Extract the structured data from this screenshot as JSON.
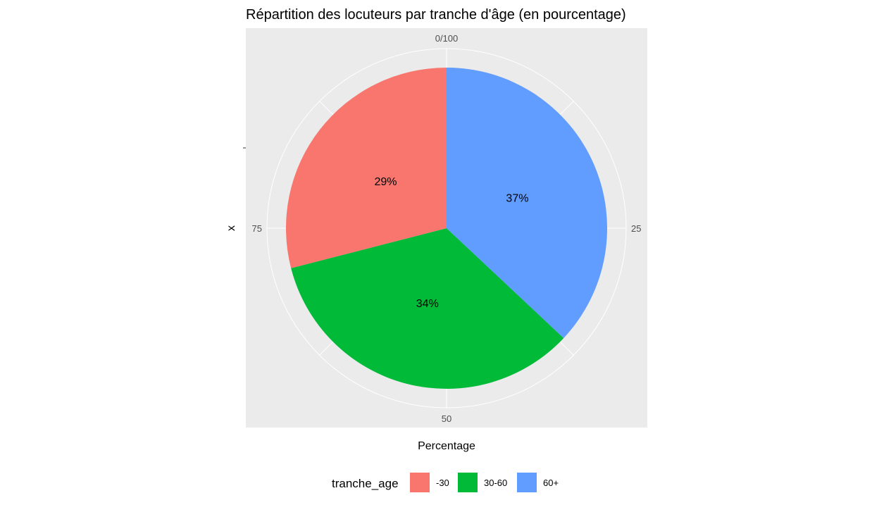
{
  "chart_data": {
    "type": "pie",
    "title": "Répartition des locuteurs par tranche d'âge (en pourcentage)",
    "xlabel": "Percentage",
    "ylabel": "x",
    "theta_ticks": [
      {
        "label": "0/100",
        "value": 0
      },
      {
        "label": "25",
        "value": 25
      },
      {
        "label": "50",
        "value": 50
      },
      {
        "label": "75",
        "value": 75
      }
    ],
    "categories": [
      "-30",
      "30-60",
      "60+"
    ],
    "values": [
      29,
      34,
      37
    ],
    "labels": [
      "29%",
      "34%",
      "37%"
    ],
    "colors": [
      "#F8766D",
      "#00BA38",
      "#619CFF"
    ],
    "legend": {
      "title": "tranche_age",
      "position": "bottom",
      "items": [
        "-30",
        "30-60",
        "60+"
      ]
    },
    "grid": true,
    "panel_background": "#EBEBEB",
    "grid_color": "#FFFFFF",
    "direction": "clockwise",
    "stack_order": [
      "60+",
      "30-60",
      "-30"
    ]
  }
}
